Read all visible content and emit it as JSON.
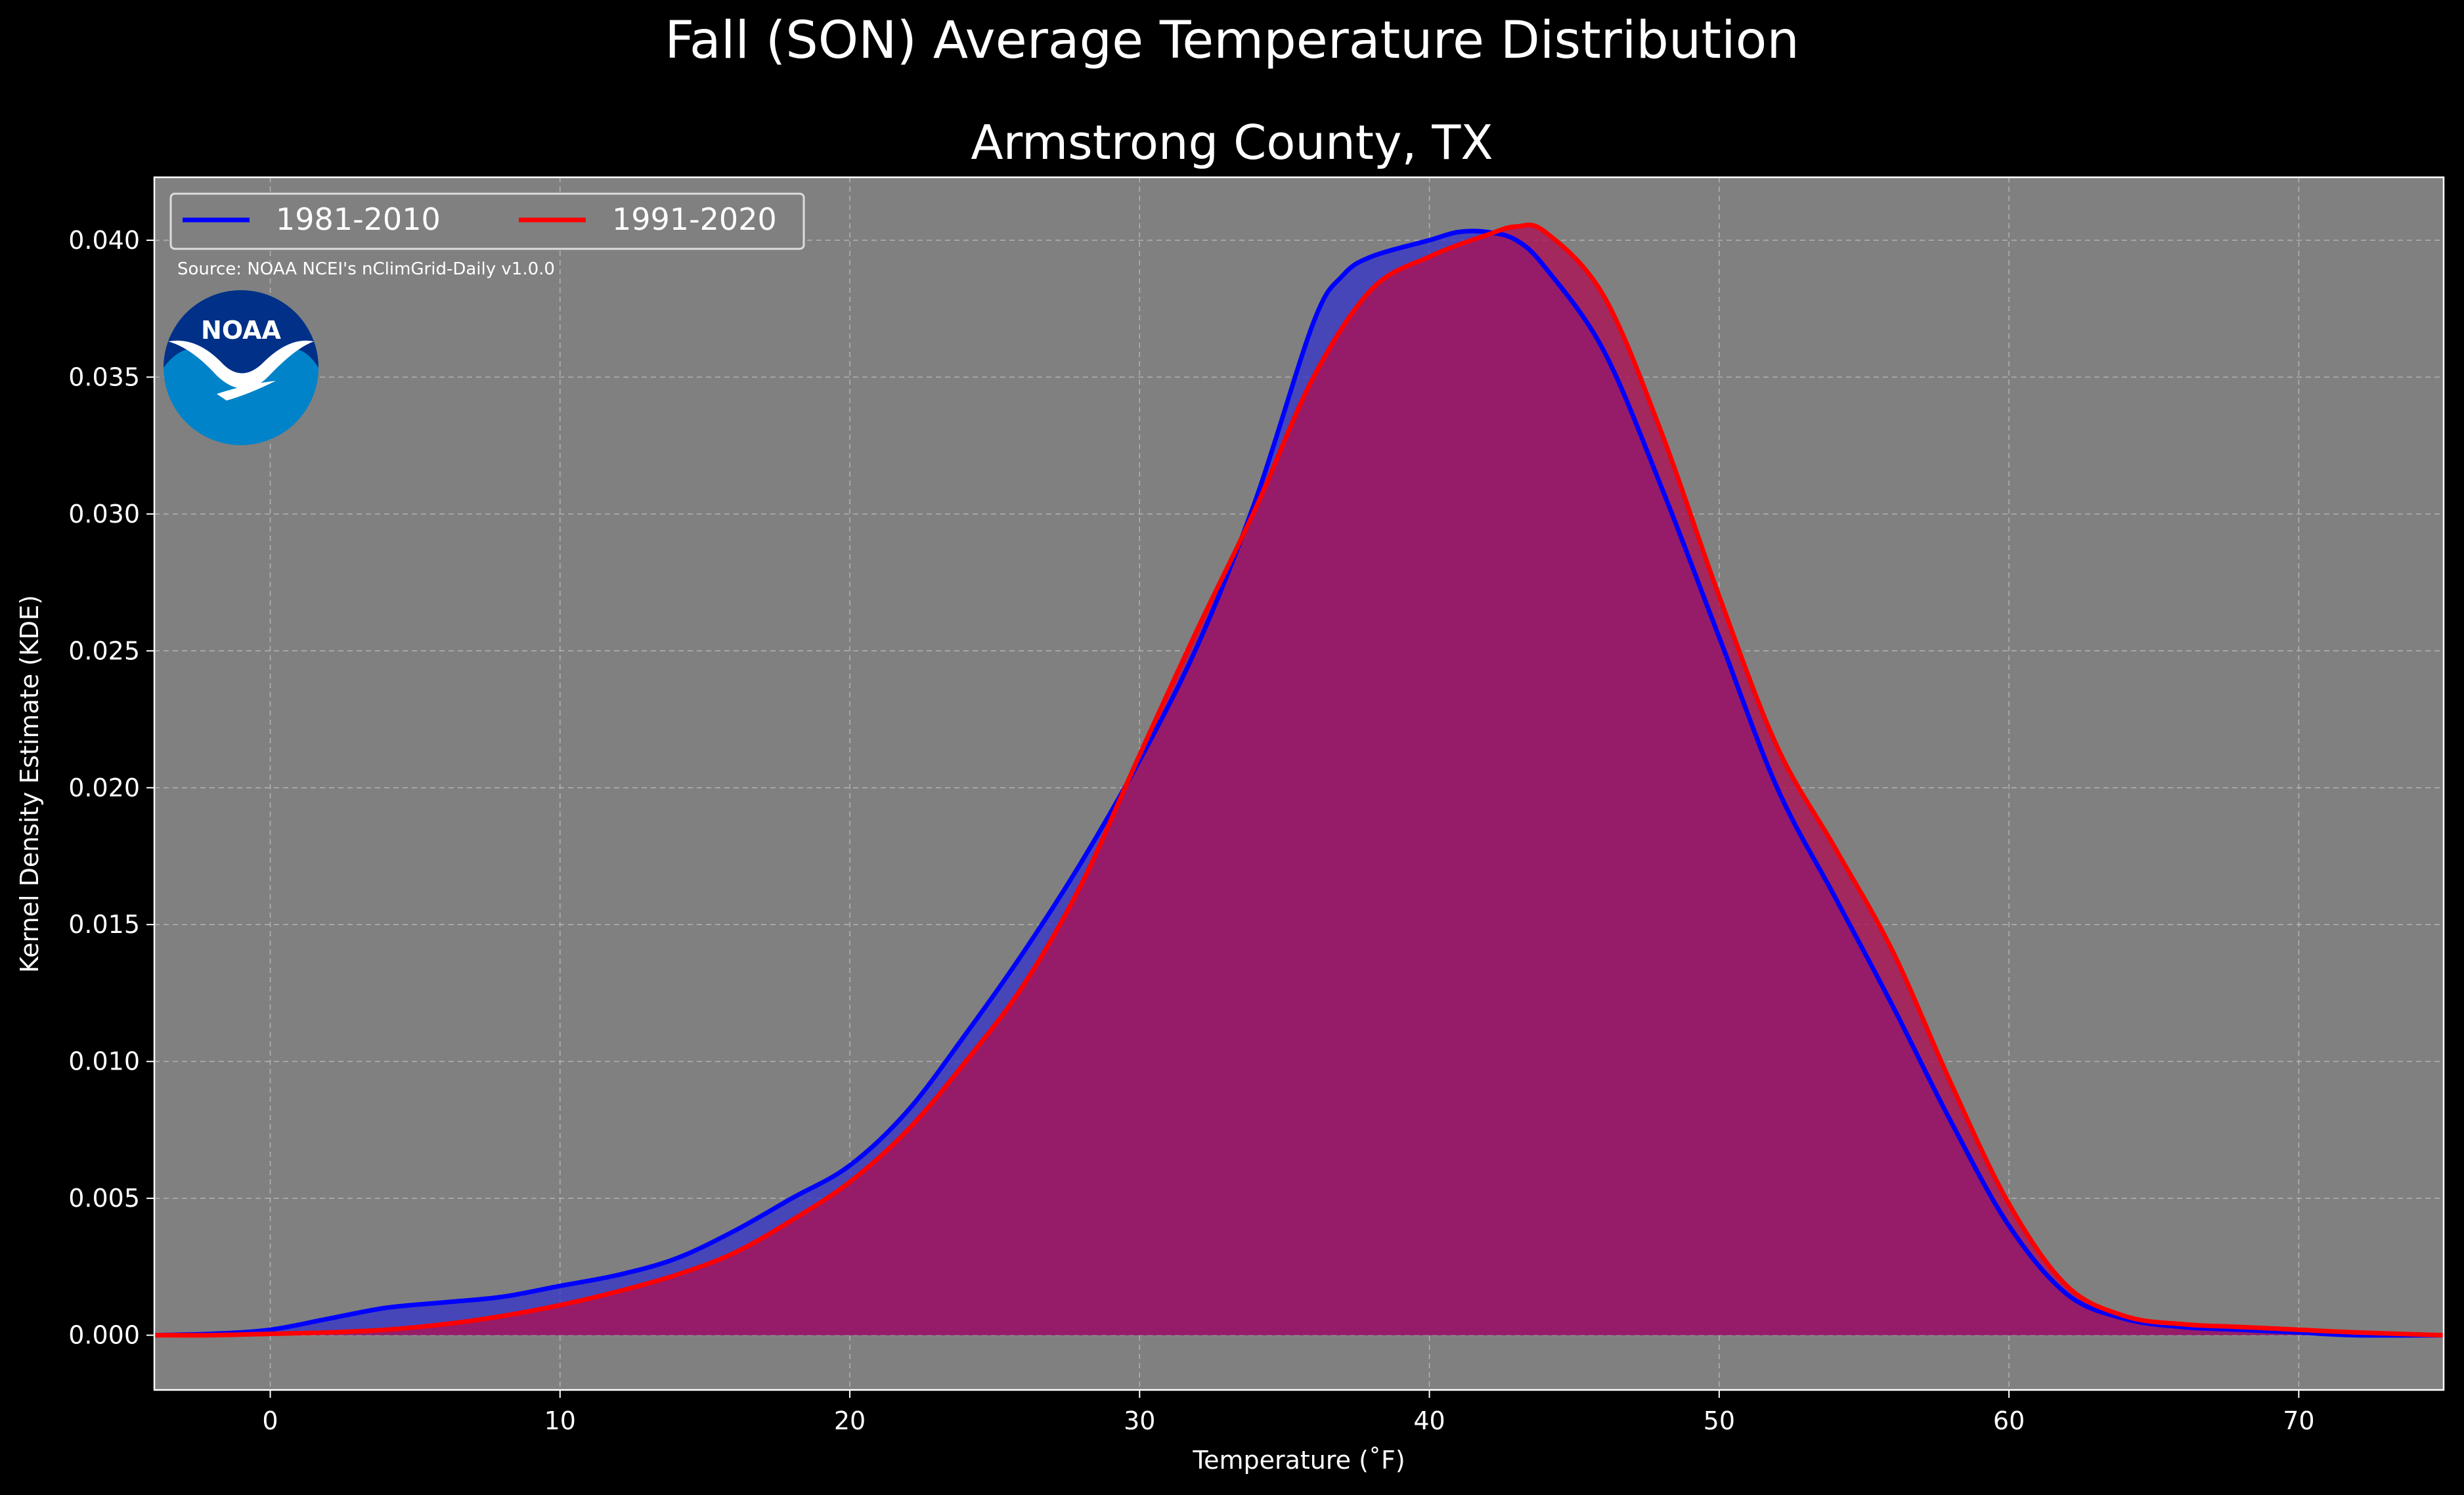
{
  "chart_data": {
    "type": "area",
    "title": "Fall (SON) Average Temperature Distribution",
    "subtitle": "Armstrong County, TX",
    "xlabel": "Temperature (˚F)",
    "ylabel": "Kernel Density Estimate (KDE)",
    "source": "Source: NOAA NCEI's nClimGrid-Daily v1.0.0",
    "logo_text": "NOAA",
    "xlim": [
      -4,
      75
    ],
    "ylim": [
      -0.002,
      0.0423
    ],
    "x_ticks": [
      0,
      10,
      20,
      30,
      40,
      50,
      60,
      70
    ],
    "y_ticks": [
      0.0,
      0.005,
      0.01,
      0.015,
      0.02,
      0.025,
      0.03,
      0.035,
      0.04
    ],
    "y_tick_labels": [
      "0.000",
      "0.005",
      "0.010",
      "0.015",
      "0.020",
      "0.025",
      "0.030",
      "0.035",
      "0.040"
    ],
    "x_tick_labels": [
      "0",
      "10",
      "20",
      "30",
      "40",
      "50",
      "60",
      "70"
    ],
    "grid": true,
    "legend_position": "top-left",
    "background_color": "#808080",
    "series": [
      {
        "name": "1981-2010",
        "color": "#0000ff",
        "fill": "#3333cc",
        "x": [
          -4,
          -2,
          0,
          2,
          4,
          6,
          8,
          10,
          12,
          14,
          16,
          18,
          20,
          22,
          24,
          26,
          28,
          30,
          32,
          34,
          36,
          37,
          38,
          40,
          41,
          42,
          43,
          44,
          46,
          48,
          50,
          52,
          54,
          56,
          58,
          60,
          62,
          64,
          66,
          68,
          70,
          72,
          75
        ],
        "values": [
          0.0,
          5e-05,
          0.0002,
          0.0006,
          0.001,
          0.0012,
          0.0014,
          0.0018,
          0.0022,
          0.0028,
          0.0038,
          0.005,
          0.0062,
          0.0082,
          0.011,
          0.014,
          0.0173,
          0.021,
          0.0252,
          0.0305,
          0.037,
          0.0387,
          0.0394,
          0.04,
          0.0403,
          0.0403,
          0.04,
          0.039,
          0.036,
          0.031,
          0.0255,
          0.02,
          0.016,
          0.012,
          0.0078,
          0.004,
          0.0015,
          0.0006,
          0.0003,
          0.0002,
          0.0001,
          0.0,
          0.0
        ]
      },
      {
        "name": "1991-2020",
        "color": "#ff0000",
        "fill": "#aa1155",
        "x": [
          -4,
          -2,
          0,
          2,
          4,
          6,
          8,
          10,
          12,
          14,
          16,
          18,
          20,
          22,
          24,
          26,
          28,
          30,
          32,
          34,
          36,
          38,
          40,
          42,
          43,
          44,
          46,
          48,
          50,
          52,
          54,
          56,
          58,
          60,
          62,
          64,
          66,
          68,
          70,
          72,
          75
        ],
        "values": [
          0.0,
          0.0,
          5e-05,
          0.0001,
          0.0002,
          0.0004,
          0.0007,
          0.0011,
          0.0016,
          0.0022,
          0.003,
          0.0042,
          0.0056,
          0.0075,
          0.01,
          0.0128,
          0.0165,
          0.0212,
          0.0258,
          0.0302,
          0.035,
          0.0382,
          0.0394,
          0.0402,
          0.0405,
          0.0403,
          0.038,
          0.033,
          0.027,
          0.0215,
          0.0178,
          0.014,
          0.0092,
          0.0048,
          0.0018,
          0.0007,
          0.0004,
          0.0003,
          0.0002,
          0.0001,
          0.0
        ]
      }
    ]
  }
}
